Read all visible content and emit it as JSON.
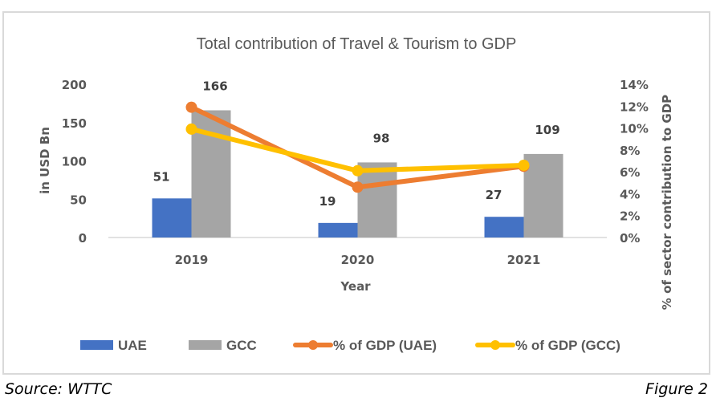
{
  "chart_data": {
    "type": "bar",
    "title": "Total contribution of Travel & Tourism to GDP",
    "categories": [
      "2019",
      "2020",
      "2021"
    ],
    "xlabel": "Year",
    "ylabel": "in USD Bn",
    "y2label": "% of sector contribution to GDP",
    "ylim": [
      0,
      200
    ],
    "yticks": [
      0,
      50,
      100,
      150,
      200
    ],
    "y2lim": [
      0,
      14
    ],
    "y2ticks": [
      "0%",
      "2%",
      "4%",
      "6%",
      "8%",
      "10%",
      "12%",
      "14%"
    ],
    "grid": false,
    "legend_position": "bottom",
    "series": [
      {
        "name": "UAE",
        "type": "bar",
        "axis": "left",
        "color": "#4472c4",
        "values": [
          51,
          19,
          27
        ],
        "labels": [
          "51",
          "19",
          "27"
        ]
      },
      {
        "name": "GCC",
        "type": "bar",
        "axis": "left",
        "color": "#a5a5a5",
        "values": [
          166,
          98,
          109
        ],
        "labels": [
          "166",
          "98",
          "109"
        ]
      },
      {
        "name": "% of GDP (UAE)",
        "type": "line",
        "axis": "right",
        "color": "#ed7d31",
        "values": [
          11.9,
          4.6,
          6.5
        ]
      },
      {
        "name": "% of GDP (GCC)",
        "type": "line",
        "axis": "right",
        "color": "#ffc000",
        "values": [
          9.9,
          6.1,
          6.6
        ]
      }
    ]
  },
  "footer": {
    "source": "Source: WTTC",
    "figure": "Figure 2"
  }
}
